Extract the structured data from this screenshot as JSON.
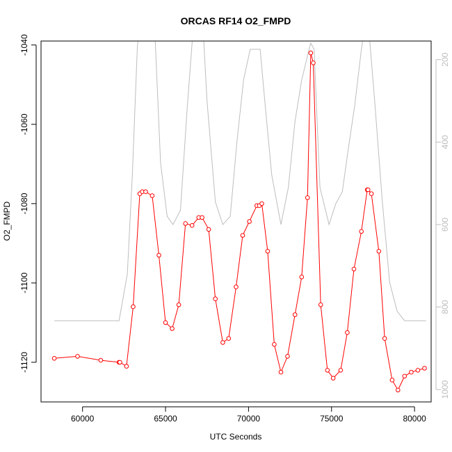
{
  "chart_data": {
    "type": "line",
    "title": "ORCAS RF14 O2_FMPD",
    "xlabel": "UTC Seconds",
    "ylabel": "O2_FMPD",
    "xlim": [
      57500,
      81000
    ],
    "ylim": [
      -1130,
      -1039
    ],
    "y2lim": [
      1030,
      155
    ],
    "y2_reversed": true,
    "xticks": [
      60000,
      65000,
      70000,
      75000,
      80000
    ],
    "yticks": [
      -1120,
      -1100,
      -1080,
      -1060,
      -1040
    ],
    "y2ticks": [
      200,
      400,
      600,
      800,
      1000
    ],
    "series": [
      {
        "role": "primary",
        "color": "#ff0000",
        "marker": "circle",
        "x": [
          58300,
          59700,
          61100,
          62200,
          62250,
          62650,
          63050,
          63450,
          63600,
          63800,
          64200,
          64600,
          65000,
          65400,
          65800,
          66200,
          66600,
          67000,
          67200,
          67600,
          68000,
          68450,
          68800,
          69250,
          69650,
          70050,
          70500,
          70650,
          70800,
          71150,
          71550,
          71950,
          72350,
          72800,
          73200,
          73550,
          73750,
          73900,
          74350,
          74750,
          75100,
          75550,
          75950,
          76350,
          76800,
          77150,
          77200,
          77400,
          77850,
          78200,
          78650,
          79000,
          79400,
          79800,
          80200,
          80600
        ],
        "y": [
          -1119,
          -1118.5,
          -1119.5,
          -1120,
          -1120,
          -1121,
          -1106,
          -1077.5,
          -1077,
          -1077,
          -1078,
          -1093,
          -1110,
          -1111.5,
          -1105.5,
          -1085,
          -1085.5,
          -1083.5,
          -1083.5,
          -1086.5,
          -1104,
          -1115,
          -1114,
          -1101,
          -1088,
          -1084.5,
          -1080.5,
          -1080.5,
          -1080,
          -1092,
          -1115.5,
          -1122.5,
          -1118.5,
          -1108,
          -1098.5,
          -1078.5,
          -1042,
          -1044.5,
          -1105.5,
          -1122,
          -1124,
          -1122,
          -1112.5,
          -1096.5,
          -1087,
          -1076.5,
          -1076.5,
          -1077.5,
          -1092,
          -1114,
          -1124.5,
          -1127,
          -1123.5,
          -1122.5,
          -1122,
          -1121.5
        ]
      },
      {
        "role": "secondary",
        "color": "#bdbdbd",
        "marker": "none",
        "x": [
          58300,
          59500,
          60500,
          61500,
          62200,
          62700,
          63000,
          63300,
          63500,
          64300,
          64700,
          65100,
          65450,
          65900,
          66300,
          66750,
          67200,
          67500,
          68000,
          68450,
          68900,
          69300,
          69700,
          70100,
          70700,
          71000,
          71400,
          71950,
          72400,
          72800,
          73200,
          73650,
          73750,
          73950,
          74300,
          74850,
          75250,
          75650,
          76000,
          76400,
          76800,
          77150,
          77600,
          78050,
          78500,
          78950,
          79400,
          80000,
          80700
        ],
        "y": [
          833,
          833,
          833,
          833,
          833,
          720,
          480,
          170,
          80,
          80,
          450,
          580,
          600,
          565,
          320,
          80,
          80,
          300,
          545,
          600,
          580,
          400,
          250,
          175,
          175,
          310,
          480,
          600,
          510,
          350,
          250,
          175,
          160,
          175,
          510,
          600,
          550,
          520,
          420,
          310,
          175,
          80,
          300,
          540,
          740,
          810,
          833,
          833,
          833
        ]
      }
    ],
    "grid": false,
    "legend": "none"
  }
}
